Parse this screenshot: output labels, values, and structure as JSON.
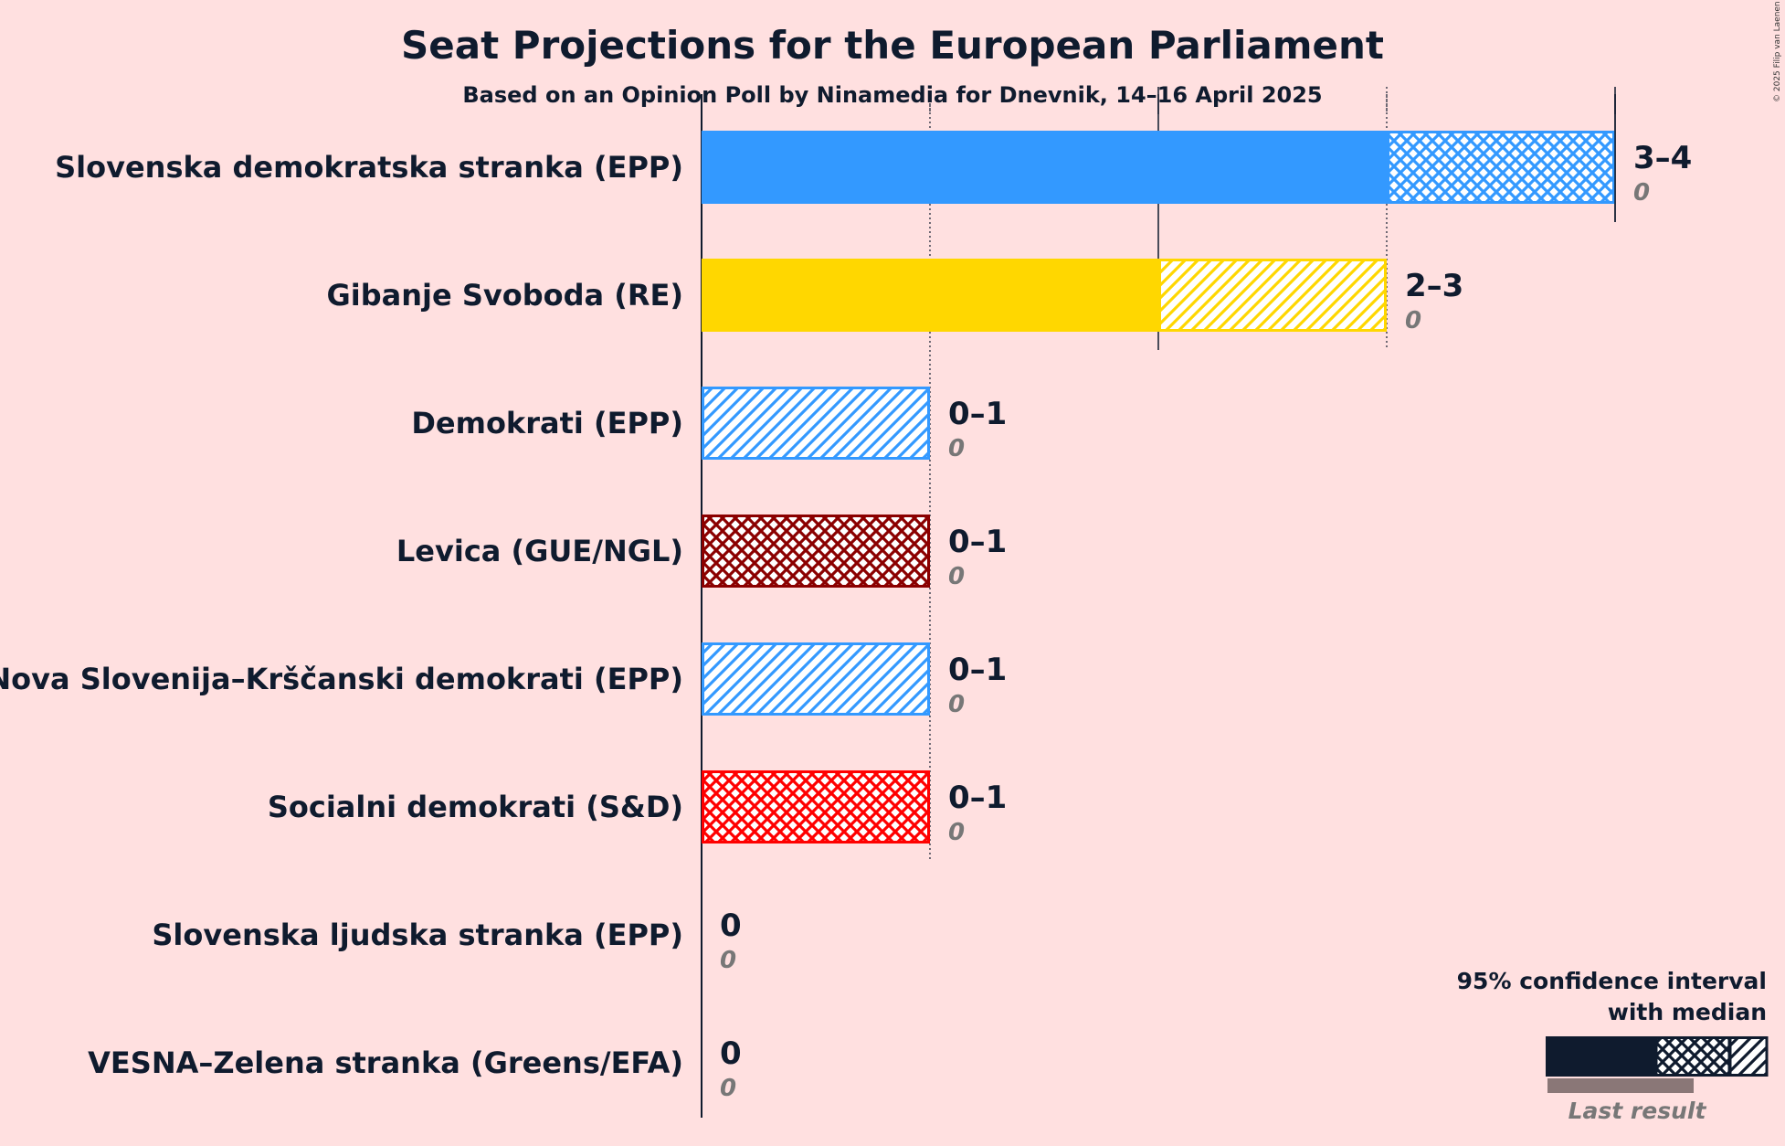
{
  "chart_data": {
    "type": "bar",
    "title": "Seat Projections for the European Parliament",
    "subtitle": "Based on an Opinion Poll by Ninamedia for Dnevnik, 14–16 April 2025",
    "copyright": "© 2025 Filip van Laenen",
    "xlim": [
      0,
      4
    ],
    "gridlines": [
      1,
      2,
      3,
      4
    ],
    "parties": [
      {
        "name": "Slovenska demokratska stranka (EPP)",
        "low": 3,
        "median": 3,
        "high": 4,
        "range_label": "3–4",
        "last_result": "0",
        "color": "#3399ff",
        "style": "cross"
      },
      {
        "name": "Gibanje Svoboda (RE)",
        "low": 2,
        "median": 2,
        "high": 3,
        "range_label": "2–3",
        "last_result": "0",
        "color": "#ffd700",
        "style": "diag"
      },
      {
        "name": "Demokrati (EPP)",
        "low": 0,
        "median": 0,
        "high": 1,
        "range_label": "0–1",
        "last_result": "0",
        "color": "#3399ff",
        "style": "diag"
      },
      {
        "name": "Levica (GUE/NGL)",
        "low": 0,
        "median": 0,
        "high": 1,
        "range_label": "0–1",
        "last_result": "0",
        "color": "#8b0000",
        "style": "cross"
      },
      {
        "name": "Nova Slovenija–Krščanski demokrati (EPP)",
        "low": 0,
        "median": 0,
        "high": 1,
        "range_label": "0–1",
        "last_result": "0",
        "color": "#3399ff",
        "style": "diag"
      },
      {
        "name": "Socialni demokrati (S&D)",
        "low": 0,
        "median": 0,
        "high": 1,
        "range_label": "0–1",
        "last_result": "0",
        "color": "#ff0000",
        "style": "cross"
      },
      {
        "name": "Slovenska ljudska stranka (EPP)",
        "low": 0,
        "median": 0,
        "high": 0,
        "range_label": "0",
        "last_result": "0",
        "color": "#3399ff",
        "style": "none"
      },
      {
        "name": "VESNA–Zelena stranka (Greens/EFA)",
        "low": 0,
        "median": 0,
        "high": 0,
        "range_label": "0",
        "last_result": "0",
        "color": "#66bb44",
        "style": "none"
      }
    ],
    "legend": {
      "line1": "95% confidence interval",
      "line2": "with median",
      "last_result_label": "Last result",
      "placement": "bottom-right",
      "color": "#0f1b2e"
    }
  }
}
